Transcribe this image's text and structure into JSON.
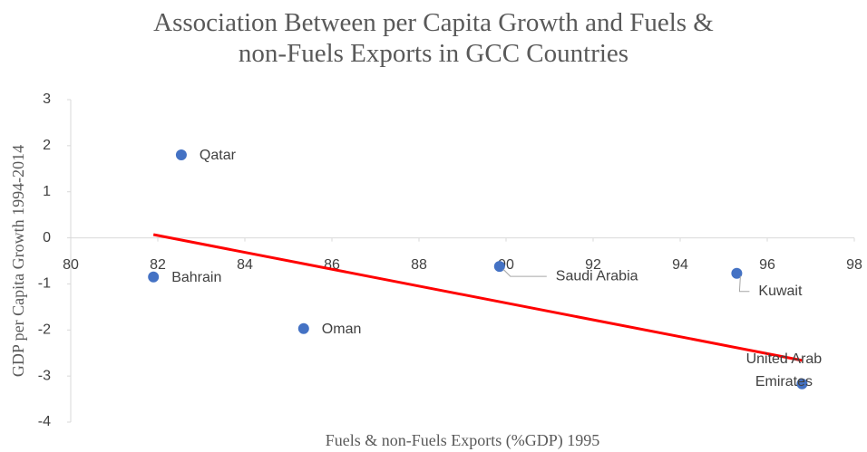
{
  "chart_data": {
    "type": "scatter",
    "title": "Association Between per Capita Growth and Fuels & non-Fuels Exports in GCC Countries",
    "x_label": "Fuels & non-Fuels Exports (%GDP) 1995",
    "y_label": "GDP per Capita Growth 1994-2014",
    "labels": [
      "Qatar",
      "Bahrain",
      "Oman",
      "Saudi Arabia",
      "Kuwait",
      "United Arab Emirates"
    ],
    "x": [
      82.54,
      81.9,
      85.35,
      89.85,
      95.3,
      96.8
    ],
    "values": [
      1.8,
      -0.85,
      -1.97,
      -0.62,
      -0.77,
      -3.17
    ],
    "color": "#4472c4",
    "trendline": {
      "x": [
        81.9,
        96.8
      ],
      "y": [
        0.07,
        -2.66
      ],
      "color": "#ff0000"
    },
    "xlim": [
      80,
      98
    ],
    "xticks": [
      80,
      82,
      84,
      86,
      88,
      90,
      92,
      94,
      96,
      98
    ],
    "ylim": [
      -4,
      3
    ],
    "yticks": [
      -4,
      -3,
      -2,
      -1,
      0,
      1,
      2,
      3
    ]
  }
}
